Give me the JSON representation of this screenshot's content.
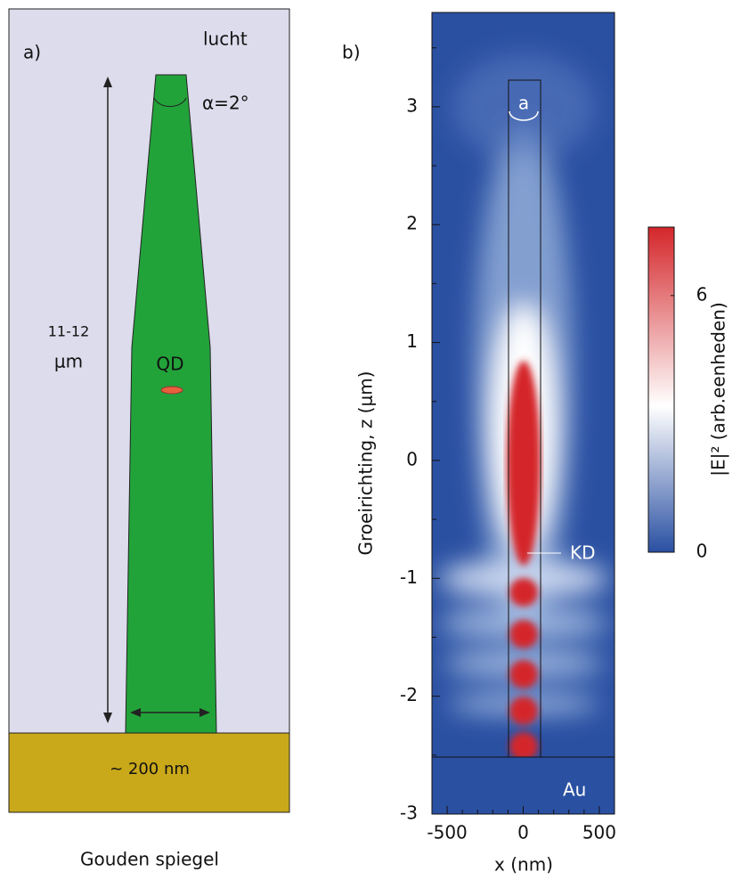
{
  "panel_a": {
    "label": "a)",
    "medium": "lucht",
    "angle": "α=2°",
    "length": "11-12",
    "length_unit": "μm",
    "dot": "QD",
    "base_width": "~ 200 nm",
    "caption": "Gouden spiegel"
  },
  "chart_data": {
    "type": "heatmap",
    "panel_label": "b)",
    "x_label": "x (nm)",
    "y_label": "Groeirichting, z (μm)",
    "xlim": [
      -600,
      600
    ],
    "xticks": [
      -500,
      0,
      500
    ],
    "xminorticks": [
      -400,
      -300,
      -200,
      -100,
      100,
      200,
      300,
      400
    ],
    "ylim": [
      -3,
      3.8
    ],
    "yticks": [
      -3,
      -2,
      -1,
      0,
      1,
      2,
      3
    ],
    "yminorticks": [
      -2.5,
      -1.5,
      -0.5,
      0.5,
      1.5,
      2.5,
      3.5
    ],
    "colorbar": {
      "label": "|E|² (arb.eenheden)",
      "lim": [
        0,
        7.6
      ],
      "ticks": [
        0,
        6
      ],
      "colors": [
        "#2a50a2",
        "#ffffff",
        "#d4262a"
      ]
    },
    "annotations": {
      "angle": "a",
      "dot": "KD",
      "substrate": "Au"
    }
  }
}
